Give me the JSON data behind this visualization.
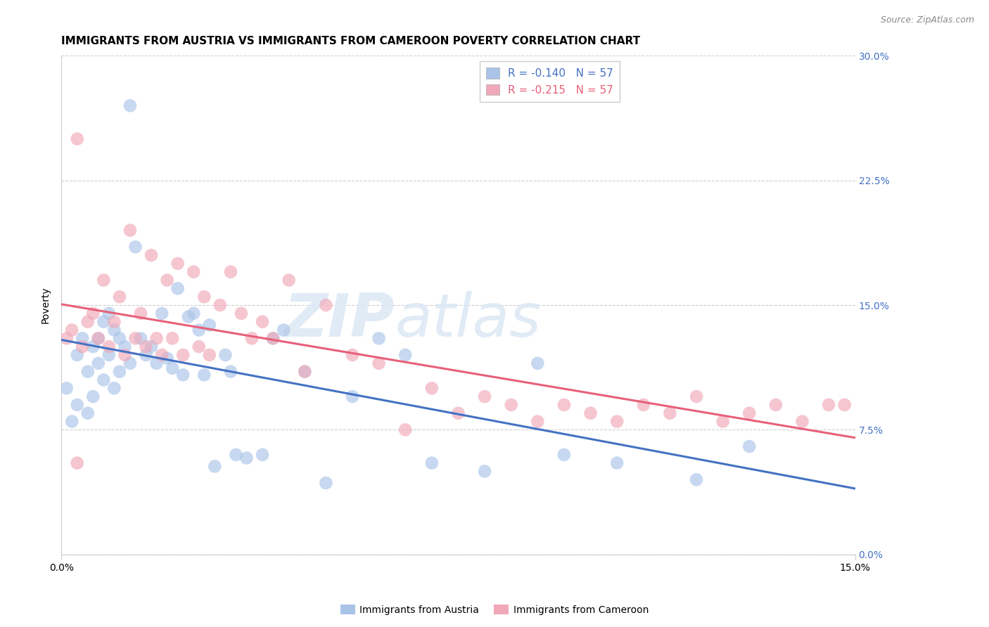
{
  "title": "IMMIGRANTS FROM AUSTRIA VS IMMIGRANTS FROM CAMEROON POVERTY CORRELATION CHART",
  "source": "Source: ZipAtlas.com",
  "ylabel": "Poverty",
  "ytick_values": [
    0.0,
    0.075,
    0.15,
    0.225,
    0.3
  ],
  "ytick_labels_right": [
    "0.0%",
    "7.5%",
    "15.0%",
    "22.5%",
    "30.0%"
  ],
  "xlim": [
    0.0,
    0.15
  ],
  "ylim": [
    0.0,
    0.3
  ],
  "series1_name": "Immigrants from Austria",
  "series2_name": "Immigrants from Cameroon",
  "color_austria": "#aac4e8",
  "color_cameroon": "#f0a8b8",
  "line_color_austria": "#4472c4",
  "line_color_cameroon": "#e8607a",
  "R_austria": -0.14,
  "R_cameroon": -0.215,
  "N": 57,
  "watermark_zip": "ZIP",
  "watermark_atlas": "atlas",
  "title_fontsize": 11,
  "axis_label_fontsize": 10,
  "tick_fontsize": 10,
  "legend_fontsize": 11,
  "source_fontsize": 9,
  "austria_x": [
    0.001,
    0.002,
    0.003,
    0.003,
    0.004,
    0.005,
    0.005,
    0.006,
    0.006,
    0.007,
    0.007,
    0.008,
    0.008,
    0.009,
    0.009,
    0.01,
    0.01,
    0.011,
    0.011,
    0.012,
    0.013,
    0.013,
    0.014,
    0.015,
    0.016,
    0.017,
    0.018,
    0.019,
    0.02,
    0.021,
    0.022,
    0.023,
    0.024,
    0.025,
    0.026,
    0.027,
    0.028,
    0.029,
    0.031,
    0.032,
    0.033,
    0.035,
    0.038,
    0.04,
    0.042,
    0.046,
    0.05,
    0.055,
    0.06,
    0.065,
    0.07,
    0.08,
    0.09,
    0.095,
    0.105,
    0.12,
    0.13
  ],
  "austria_y": [
    0.1,
    0.08,
    0.12,
    0.09,
    0.13,
    0.11,
    0.085,
    0.125,
    0.095,
    0.13,
    0.115,
    0.14,
    0.105,
    0.145,
    0.12,
    0.135,
    0.1,
    0.13,
    0.11,
    0.125,
    0.27,
    0.115,
    0.185,
    0.13,
    0.12,
    0.125,
    0.115,
    0.145,
    0.118,
    0.112,
    0.16,
    0.108,
    0.143,
    0.145,
    0.135,
    0.108,
    0.138,
    0.053,
    0.12,
    0.11,
    0.06,
    0.058,
    0.06,
    0.13,
    0.135,
    0.11,
    0.043,
    0.095,
    0.13,
    0.12,
    0.055,
    0.05,
    0.115,
    0.06,
    0.055,
    0.045,
    0.065
  ],
  "cameroon_x": [
    0.001,
    0.002,
    0.003,
    0.004,
    0.005,
    0.006,
    0.007,
    0.008,
    0.009,
    0.01,
    0.011,
    0.012,
    0.013,
    0.014,
    0.015,
    0.016,
    0.017,
    0.018,
    0.019,
    0.02,
    0.021,
    0.022,
    0.023,
    0.025,
    0.026,
    0.027,
    0.028,
    0.03,
    0.032,
    0.034,
    0.036,
    0.038,
    0.04,
    0.043,
    0.046,
    0.05,
    0.055,
    0.06,
    0.065,
    0.07,
    0.075,
    0.08,
    0.085,
    0.09,
    0.095,
    0.1,
    0.105,
    0.11,
    0.115,
    0.12,
    0.125,
    0.13,
    0.135,
    0.14,
    0.145,
    0.148,
    0.003
  ],
  "cameroon_y": [
    0.13,
    0.135,
    0.25,
    0.125,
    0.14,
    0.145,
    0.13,
    0.165,
    0.125,
    0.14,
    0.155,
    0.12,
    0.195,
    0.13,
    0.145,
    0.125,
    0.18,
    0.13,
    0.12,
    0.165,
    0.13,
    0.175,
    0.12,
    0.17,
    0.125,
    0.155,
    0.12,
    0.15,
    0.17,
    0.145,
    0.13,
    0.14,
    0.13,
    0.165,
    0.11,
    0.15,
    0.12,
    0.115,
    0.075,
    0.1,
    0.085,
    0.095,
    0.09,
    0.08,
    0.09,
    0.085,
    0.08,
    0.09,
    0.085,
    0.095,
    0.08,
    0.085,
    0.09,
    0.08,
    0.09,
    0.09,
    0.055
  ]
}
